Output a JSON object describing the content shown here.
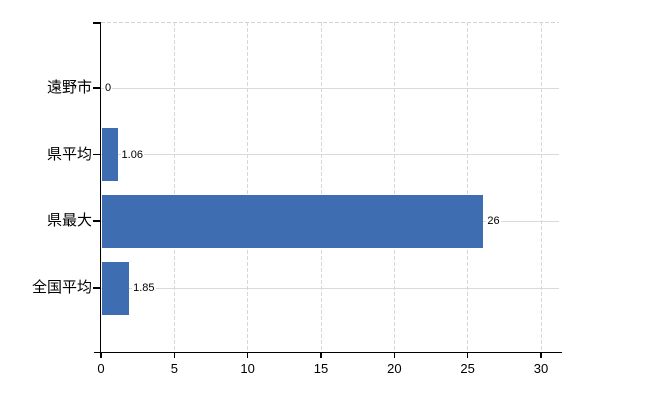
{
  "chart_data": {
    "type": "bar",
    "orientation": "horizontal",
    "title": "",
    "xlabel": "",
    "ylabel": "",
    "categories": [
      "遠野市",
      "県平均",
      "県最大",
      "全国平均"
    ],
    "values": [
      0,
      1.06,
      26,
      1.85
    ],
    "value_labels": [
      "0",
      "1.06",
      "26",
      "1.85"
    ],
    "x_ticks": [
      0,
      5,
      10,
      15,
      20,
      25,
      30
    ],
    "xlim": [
      0,
      30
    ],
    "grid": true,
    "legend_position": "none"
  },
  "colors": {
    "background": "#ffffff",
    "bar": "#3e6db2",
    "axis": "#000000",
    "text": "#000000",
    "h_gridline": "#d6dcd6",
    "v_gridline": "#d7d6de",
    "top_border": "#d2d2da"
  }
}
